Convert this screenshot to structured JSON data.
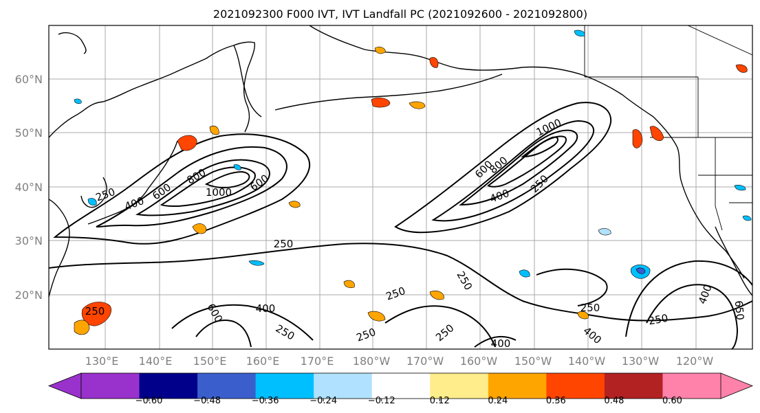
{
  "title": "2021092300 F000 IVT, IVT Landfall PC (2021092600 - 2021092800)",
  "lat_labels": [
    "60°N",
    "50°N",
    "40°N",
    "30°N",
    "20°N"
  ],
  "lon_labels": [
    "130°E",
    "140°E",
    "150°E",
    "160°E",
    "170°E",
    "180°W",
    "170°W",
    "160°W",
    "150°W",
    "140°W",
    "130°W",
    "120°W"
  ],
  "colorbar": {
    "ticks": [
      "−0.60",
      "−0.48",
      "−0.36",
      "−0.24",
      "−0.12",
      "0.12",
      "0.24",
      "0.36",
      "0.48",
      "0.60"
    ],
    "colors": [
      "#9932cc",
      "#00008b",
      "#3a5fcd",
      "#00bfff",
      "#b0e2ff",
      "#ffffff",
      "#ffec8b",
      "#ffa500",
      "#ff4500",
      "#b22222",
      "#ff82ab"
    ]
  },
  "contour_labels": [
    {
      "text": "250"
    },
    {
      "text": "400"
    },
    {
      "text": "600"
    },
    {
      "text": "800"
    },
    {
      "text": "1000"
    },
    {
      "text": "600"
    },
    {
      "text": "250"
    },
    {
      "text": "600"
    },
    {
      "text": "800"
    },
    {
      "text": "1000"
    },
    {
      "text": "400"
    },
    {
      "text": "250"
    },
    {
      "text": "250"
    },
    {
      "text": "400"
    },
    {
      "text": "600"
    },
    {
      "text": "250"
    },
    {
      "text": "250"
    },
    {
      "text": "250"
    },
    {
      "text": "250"
    },
    {
      "text": "250"
    },
    {
      "text": "250"
    },
    {
      "text": "400"
    },
    {
      "text": "400"
    },
    {
      "text": "250"
    },
    {
      "text": "400"
    },
    {
      "text": "650"
    }
  ]
}
